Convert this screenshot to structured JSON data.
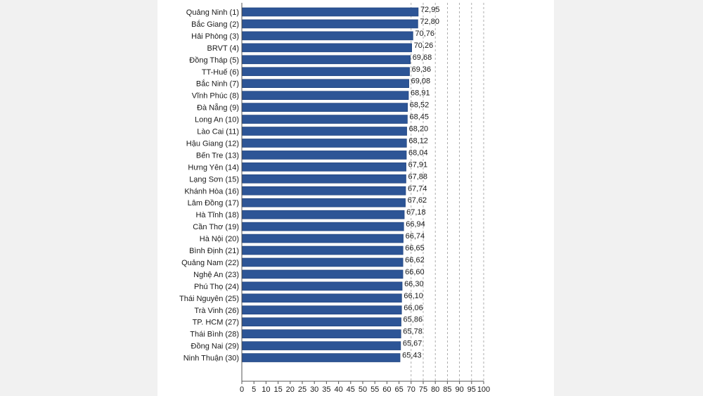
{
  "chart_data": {
    "type": "bar",
    "orientation": "horizontal",
    "categories": [
      "Quảng Ninh (1)",
      "Bắc Giang (2)",
      "Hải Phòng (3)",
      "BRVT (4)",
      "Đồng Tháp (5)",
      "TT-Huế (6)",
      "Bắc Ninh (7)",
      "Vĩnh Phúc (8)",
      "Đà Nẵng (9)",
      "Long An (10)",
      "Lào Cai (11)",
      "Hậu Giang (12)",
      "Bến Tre (13)",
      "Hưng Yên (14)",
      "Lạng Sơn (15)",
      "Khánh Hòa (16)",
      "Lâm Đồng (17)",
      "Hà Tĩnh (18)",
      "Cần Thơ (19)",
      "Hà Nội (20)",
      "Bình Định (21)",
      "Quảng Nam (22)",
      "Nghệ An (23)",
      "Phú Thọ (24)",
      "Thái Nguyên (25)",
      "Trà Vinh (26)",
      "TP. HCM (27)",
      "Thái Bình (28)",
      "Đồng Nai (29)",
      "Ninh Thuận (30)"
    ],
    "values": [
      72.95,
      72.8,
      70.76,
      70.26,
      69.68,
      69.36,
      69.08,
      68.91,
      68.52,
      68.45,
      68.2,
      68.12,
      68.04,
      67.91,
      67.88,
      67.74,
      67.62,
      67.18,
      66.94,
      66.74,
      66.65,
      66.62,
      66.6,
      66.3,
      66.1,
      66.06,
      65.86,
      65.78,
      65.67,
      65.43
    ],
    "value_labels": [
      "72,95",
      "72,80",
      "70,76",
      "70,26",
      "69,68",
      "69,36",
      "69,08",
      "68,91",
      "68,52",
      "68,45",
      "68,20",
      "68,12",
      "68,04",
      "67,91",
      "67,88",
      "67,74",
      "67,62",
      "67,18",
      "66,94",
      "66,74",
      "66,65",
      "66,62",
      "66,60",
      "66,30",
      "66,10",
      "66,06",
      "65,86",
      "65,78",
      "65,67",
      "65,43"
    ],
    "xlim": [
      0,
      100
    ],
    "xticks": [
      0,
      5,
      10,
      15,
      20,
      25,
      30,
      35,
      40,
      45,
      50,
      55,
      60,
      65,
      70,
      75,
      80,
      85,
      90,
      95,
      100
    ],
    "grid": "vertical-dashed",
    "title": "",
    "xlabel": "",
    "ylabel": "",
    "colors": {
      "bar": "#2d5596",
      "bar_edge": "#1d3f78",
      "text": "#1a1a1a",
      "grid": "#9a9a9a"
    }
  }
}
